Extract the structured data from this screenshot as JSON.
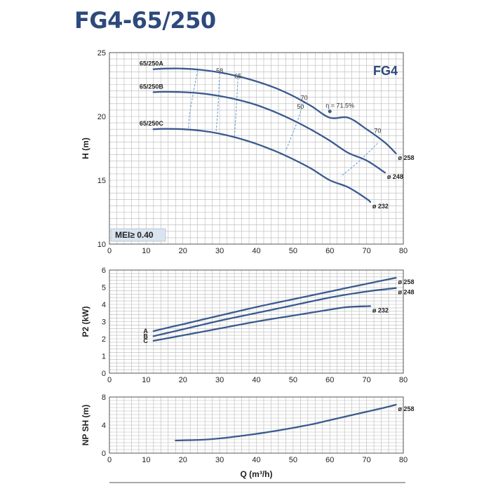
{
  "header": {
    "title": "FG4-65/250"
  },
  "colors": {
    "curve": "#3a5a8e",
    "efficiency": "#5aa0d8",
    "grid": "#b8b8b8",
    "title": "#2d4a7c",
    "badge_bg": "#d9e4ee"
  },
  "chart_data": [
    {
      "id": "head",
      "type": "line",
      "xlabel": "",
      "ylabel": "H (m)",
      "xlim": [
        0,
        80
      ],
      "ylim": [
        10,
        25
      ],
      "xticks": [
        0,
        10,
        20,
        30,
        40,
        50,
        60,
        70,
        80
      ],
      "yticks": [
        10,
        15,
        20,
        25
      ],
      "grid": true,
      "series_label": "FG4",
      "badge": "MEI≥ 0.40",
      "efficiency_label": "η = 71.5%",
      "series": [
        {
          "name": "65/250A",
          "end_label": "ø 258",
          "x": [
            12,
            15,
            20,
            25,
            30,
            35,
            40,
            45,
            50,
            55,
            60,
            65,
            70,
            75,
            78
          ],
          "values": [
            23.7,
            23.75,
            23.75,
            23.65,
            23.45,
            23.15,
            22.75,
            22.25,
            21.6,
            20.8,
            19.9,
            19.9,
            19.0,
            17.95,
            17.1
          ]
        },
        {
          "name": "65/250B",
          "end_label": "ø 248",
          "x": [
            12,
            15,
            20,
            25,
            30,
            35,
            40,
            45,
            50,
            55,
            60,
            65,
            70,
            75
          ],
          "values": [
            21.9,
            21.93,
            21.9,
            21.8,
            21.6,
            21.3,
            20.9,
            20.35,
            19.7,
            18.95,
            18.1,
            17.15,
            16.55,
            15.6
          ]
        },
        {
          "name": "65/250C",
          "end_label": "ø 232",
          "x": [
            12,
            15,
            20,
            25,
            30,
            35,
            40,
            45,
            50,
            55,
            60,
            65,
            70,
            71
          ],
          "values": [
            19.0,
            19.03,
            19.0,
            18.88,
            18.65,
            18.3,
            17.85,
            17.3,
            16.65,
            15.9,
            15.0,
            14.45,
            13.55,
            13.3
          ]
        }
      ],
      "efficiency_lines": [
        {
          "label": "50",
          "x": [
            24,
            22,
            21.5
          ],
          "values": [
            23.6,
            20.5,
            19.0
          ]
        },
        {
          "label": "58",
          "x": [
            30,
            29.5,
            29
          ],
          "values": [
            23.4,
            20.5,
            18.7
          ]
        },
        {
          "label": "65",
          "x": [
            35,
            34.5,
            34
          ],
          "values": [
            23.0,
            20.5,
            18.3
          ]
        },
        {
          "label": "70",
          "x": [
            53,
            51,
            48
          ],
          "values": [
            21.2,
            19.5,
            17.3
          ]
        },
        {
          "label": "70",
          "x": [
            73,
            68,
            63
          ],
          "values": [
            17.9,
            16.5,
            15.3
          ]
        }
      ],
      "efficiency_label_points": [
        [
          52,
          20.6
        ],
        [
          30,
          23.4
        ],
        [
          35,
          23.0
        ],
        [
          53,
          21.3
        ],
        [
          73,
          18.7
        ]
      ],
      "annotation_point": {
        "x": 60,
        "y": 20.4
      }
    },
    {
      "id": "power",
      "type": "line",
      "xlabel": "",
      "ylabel": "P2 (kW)",
      "xlim": [
        0,
        80
      ],
      "ylim": [
        0,
        6
      ],
      "xticks": [
        0,
        10,
        20,
        30,
        40,
        50,
        60,
        70,
        80
      ],
      "yticks": [
        0,
        1,
        2,
        3,
        4,
        5,
        6
      ],
      "grid": true,
      "series": [
        {
          "name": "A",
          "end_label": "ø 258",
          "x": [
            12,
            20,
            30,
            40,
            50,
            60,
            70,
            78
          ],
          "values": [
            2.45,
            2.85,
            3.35,
            3.85,
            4.3,
            4.75,
            5.2,
            5.55
          ]
        },
        {
          "name": "B",
          "end_label": "ø 248",
          "x": [
            12,
            20,
            30,
            40,
            50,
            60,
            70,
            78
          ],
          "values": [
            2.15,
            2.55,
            3.05,
            3.5,
            3.95,
            4.4,
            4.75,
            4.95
          ]
        },
        {
          "name": "C",
          "end_label": "ø 232",
          "x": [
            12,
            20,
            30,
            40,
            50,
            60,
            65,
            71
          ],
          "values": [
            1.88,
            2.2,
            2.6,
            3.0,
            3.35,
            3.7,
            3.85,
            3.9
          ]
        }
      ]
    },
    {
      "id": "npsh",
      "type": "line",
      "xlabel": "Q (m³/h)",
      "ylabel": "NP SH (m)",
      "xlim": [
        0,
        80
      ],
      "ylim": [
        0,
        8
      ],
      "xticks": [
        0,
        10,
        20,
        30,
        40,
        50,
        60,
        70,
        80
      ],
      "yticks": [
        0,
        4,
        8
      ],
      "grid": true,
      "series": [
        {
          "name": "",
          "end_label": "ø 258",
          "x": [
            18,
            25,
            30,
            35,
            40,
            45,
            50,
            55,
            60,
            65,
            70,
            75,
            78
          ],
          "values": [
            1.8,
            1.9,
            2.1,
            2.4,
            2.75,
            3.15,
            3.6,
            4.1,
            4.7,
            5.3,
            5.9,
            6.5,
            6.9
          ]
        }
      ]
    }
  ]
}
